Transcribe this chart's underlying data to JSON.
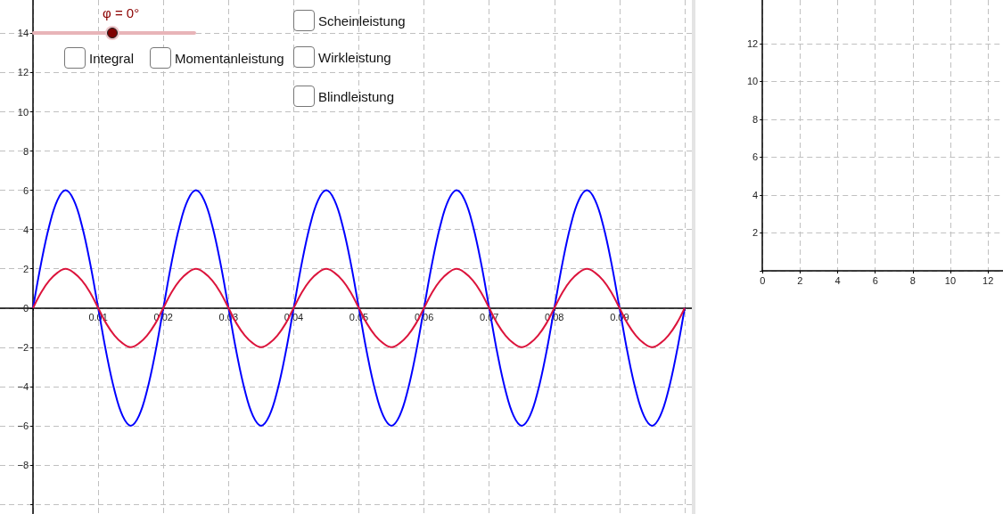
{
  "chart_data": [
    {
      "type": "line",
      "xlim": [
        -0.00507,
        0.1011
      ],
      "ylim": [
        -10.5,
        15.7
      ],
      "xticks": [
        {
          "value": 0,
          "label": null
        },
        0.01,
        0.02,
        0.03,
        0.04,
        0.05,
        0.06,
        0.07,
        0.08,
        0.09,
        {
          "value": 0.1,
          "label": null
        }
      ],
      "yticks": [
        {
          "value": -10,
          "label": null
        },
        {
          "value": -8,
          "label": "−8"
        },
        {
          "value": -6,
          "label": "−6"
        },
        {
          "value": -4,
          "label": "−4"
        },
        {
          "value": -2,
          "label": "−2"
        },
        0,
        2,
        4,
        6,
        8,
        10,
        12,
        14
      ],
      "grid": true,
      "marker": "none",
      "line_style": "solid",
      "x": [
        0,
        0.00125,
        0.0025,
        0.00375,
        0.005,
        0.00625,
        0.0075,
        0.00875,
        0.01,
        0.01125,
        0.0125,
        0.01375,
        0.015,
        0.01625,
        0.0175,
        0.01875,
        0.02,
        0.02125,
        0.0225,
        0.02375,
        0.025,
        0.02625,
        0.0275,
        0.02875,
        0.03,
        0.03125,
        0.0325,
        0.03375,
        0.035,
        0.03625,
        0.0375,
        0.03875,
        0.04,
        0.04125,
        0.0425,
        0.04375,
        0.045,
        0.04625,
        0.0475,
        0.04875,
        0.05,
        0.05125,
        0.0525,
        0.05375,
        0.055,
        0.05625,
        0.0575,
        0.05875,
        0.06,
        0.06125,
        0.0625,
        0.06375,
        0.065,
        0.06625,
        0.0675,
        0.06875,
        0.07,
        0.07125,
        0.0725,
        0.07375,
        0.075,
        0.07625,
        0.0775,
        0.07875,
        0.08,
        0.08125,
        0.0825,
        0.08375,
        0.085,
        0.08625,
        0.0875,
        0.08875,
        0.09,
        0.09125,
        0.0925,
        0.09375,
        0.095,
        0.09625,
        0.0975,
        0.09875,
        0.1
      ],
      "series": [
        {
          "color": "#0000ff",
          "values": [
            0,
            2.3,
            4.2,
            5.5,
            6,
            5.5,
            4.2,
            2.3,
            0,
            -2.3,
            -4.2,
            -5.5,
            -6,
            -5.5,
            -4.2,
            -2.3,
            0,
            2.3,
            4.2,
            5.5,
            6,
            5.5,
            4.2,
            2.3,
            0,
            -2.3,
            -4.2,
            -5.5,
            -6,
            -5.5,
            -4.2,
            -2.3,
            0,
            2.3,
            4.2,
            5.5,
            6,
            5.5,
            4.2,
            2.3,
            0,
            -2.3,
            -4.2,
            -5.5,
            -6,
            -5.5,
            -4.2,
            -2.3,
            0,
            2.3,
            4.2,
            5.5,
            6,
            5.5,
            4.2,
            2.3,
            0,
            -2.3,
            -4.2,
            -5.5,
            -6,
            -5.5,
            -4.2,
            -2.3,
            0,
            2.3,
            4.2,
            5.5,
            6,
            5.5,
            4.2,
            2.3,
            0,
            -2.3,
            -4.2,
            -5.5,
            -6,
            -5.5,
            -4.2,
            -2.3,
            0
          ]
        },
        {
          "color": "#dc143c",
          "values": [
            0,
            0.8,
            1.4,
            1.8,
            2,
            1.8,
            1.4,
            0.8,
            0,
            -0.8,
            -1.4,
            -1.8,
            -2,
            -1.8,
            -1.4,
            -0.8,
            0,
            0.8,
            1.4,
            1.8,
            2,
            1.8,
            1.4,
            0.8,
            0,
            -0.8,
            -1.4,
            -1.8,
            -2,
            -1.8,
            -1.4,
            -0.8,
            0,
            0.8,
            1.4,
            1.8,
            2,
            1.8,
            1.4,
            0.8,
            0,
            -0.8,
            -1.4,
            -1.8,
            -2,
            -1.8,
            -1.4,
            -0.8,
            0,
            0.8,
            1.4,
            1.8,
            2,
            1.8,
            1.4,
            0.8,
            0,
            -0.8,
            -1.4,
            -1.8,
            -2,
            -1.8,
            -1.4,
            -0.8,
            0,
            0.8,
            1.4,
            1.8,
            2,
            1.8,
            1.4,
            0.8,
            0,
            -0.8,
            -1.4,
            -1.8,
            -2,
            -1.8,
            -1.4,
            -0.8,
            0
          ]
        }
      ],
      "annotations": [
        "φ = 0°",
        "Integral",
        "Momentanleistung",
        "Scheinleistung",
        "Wirkleistung",
        "Blindleistung"
      ]
    },
    {
      "type": "line",
      "xlim": [
        0,
        12.8
      ],
      "ylim": [
        0,
        14.3
      ],
      "xticks": [
        0,
        2,
        4,
        6,
        8,
        10,
        12
      ],
      "yticks": [
        {
          "value": 0,
          "label": null
        },
        2,
        4,
        6,
        8,
        10,
        12
      ],
      "grid": true
    }
  ]
}
